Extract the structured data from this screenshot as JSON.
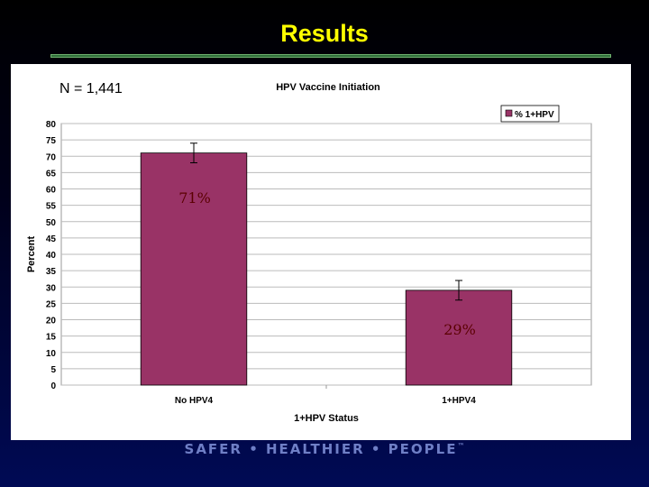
{
  "slide": {
    "title": "Results",
    "sample_size": "N = 1,441",
    "footer": "SAFER • HEALTHIER • PEOPLE",
    "footer_mark": "™"
  },
  "colors": {
    "bar": "#993366",
    "plot_bg": "#ffffff",
    "annotation": "#5a0000",
    "title": "#ffff00"
  },
  "chart_data": {
    "type": "bar",
    "title": "HPV Vaccine Initiation",
    "xlabel": "1+HPV Status",
    "ylabel": "Percent",
    "categories": [
      "No HPV4",
      "1+HPV4"
    ],
    "series": [
      {
        "name": "% 1+HPV",
        "values": [
          71,
          29
        ],
        "error_low": [
          68,
          26
        ],
        "error_high": [
          74,
          32
        ]
      }
    ],
    "annotations": [
      "71%",
      "29%"
    ],
    "ylim": [
      0,
      80
    ],
    "yticks": [
      0,
      5,
      10,
      15,
      20,
      25,
      30,
      35,
      40,
      45,
      50,
      55,
      60,
      65,
      70,
      75,
      80
    ],
    "grid": true,
    "legend": "top-right"
  }
}
